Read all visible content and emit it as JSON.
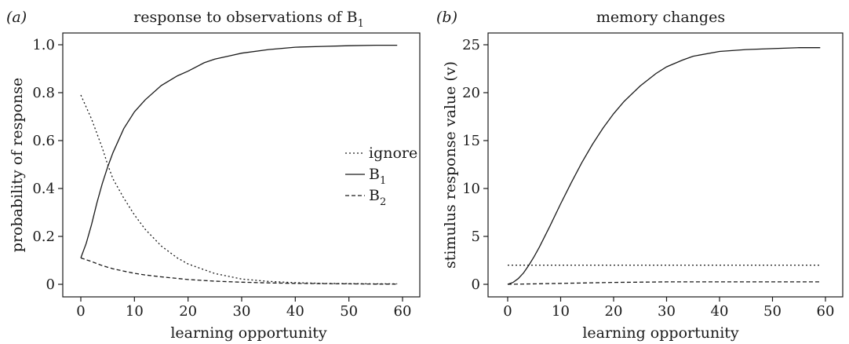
{
  "chart_data": [
    {
      "type": "line",
      "panel_label": "(a)",
      "title": "response to observations of B",
      "title_sub": "1",
      "xlabel": "learning opportunity",
      "ylabel": "probability of response",
      "xlim": [
        0,
        60
      ],
      "ylim": [
        0,
        1.0
      ],
      "xticks": [
        0,
        10,
        20,
        30,
        40,
        50,
        60
      ],
      "yticks": [
        0,
        0.2,
        0.4,
        0.6,
        0.8,
        1.0
      ],
      "ytick_labels": [
        "0",
        "0.2",
        "0.4",
        "0.6",
        "0.8",
        "1.0"
      ],
      "legend_position": "center-right",
      "series": [
        {
          "name": "ignore",
          "dash": "dotted",
          "x": [
            0,
            2,
            4,
            5,
            6,
            8,
            10,
            12,
            15,
            18,
            20,
            25,
            30,
            35,
            40,
            45,
            50,
            55,
            59
          ],
          "y": [
            0.79,
            0.69,
            0.57,
            0.5,
            0.44,
            0.36,
            0.29,
            0.23,
            0.16,
            0.11,
            0.085,
            0.045,
            0.022,
            0.012,
            0.007,
            0.004,
            0.003,
            0.002,
            0.002
          ]
        },
        {
          "name": "B",
          "name_sub": "1",
          "dash": "solid",
          "x": [
            0,
            1,
            2,
            3,
            4,
            5,
            6,
            8,
            10,
            12,
            15,
            18,
            20,
            23,
            25,
            28,
            30,
            35,
            40,
            45,
            50,
            55,
            59
          ],
          "y": [
            0.11,
            0.17,
            0.25,
            0.34,
            0.42,
            0.49,
            0.55,
            0.65,
            0.72,
            0.77,
            0.83,
            0.87,
            0.89,
            0.925,
            0.94,
            0.955,
            0.965,
            0.98,
            0.99,
            0.993,
            0.996,
            0.998,
            0.998
          ]
        },
        {
          "name": "B",
          "name_sub": "2",
          "dash": "dashed",
          "x": [
            0,
            2,
            4,
            6,
            8,
            10,
            12,
            15,
            20,
            25,
            30,
            35,
            40,
            45,
            50,
            55,
            59
          ],
          "y": [
            0.11,
            0.095,
            0.078,
            0.065,
            0.055,
            0.046,
            0.039,
            0.031,
            0.02,
            0.013,
            0.009,
            0.006,
            0.004,
            0.003,
            0.002,
            0.001,
            0.001
          ]
        }
      ]
    },
    {
      "type": "line",
      "panel_label": "(b)",
      "title": "memory changes",
      "xlabel": "learning opportunity",
      "ylabel": "stimulus response value (v)",
      "xlim": [
        0,
        60
      ],
      "ylim": [
        0,
        25
      ],
      "xticks": [
        0,
        10,
        20,
        30,
        40,
        50,
        60
      ],
      "yticks": [
        0,
        5,
        10,
        15,
        20,
        25
      ],
      "ytick_labels": [
        "0",
        "5",
        "10",
        "15",
        "20",
        "25"
      ],
      "series": [
        {
          "dash": "solid",
          "x": [
            0,
            1,
            2,
            3,
            4,
            5,
            6,
            8,
            10,
            12,
            14,
            16,
            18,
            20,
            22,
            25,
            28,
            30,
            33,
            35,
            40,
            45,
            50,
            55,
            59
          ],
          "y": [
            0,
            0.2,
            0.6,
            1.2,
            2.0,
            2.9,
            3.9,
            6.1,
            8.4,
            10.6,
            12.7,
            14.6,
            16.3,
            17.8,
            19.1,
            20.7,
            22.0,
            22.7,
            23.4,
            23.8,
            24.3,
            24.5,
            24.6,
            24.7,
            24.7
          ]
        },
        {
          "dash": "dotted",
          "x": [
            0,
            59
          ],
          "y": [
            2.0,
            2.0
          ]
        },
        {
          "dash": "dashed",
          "x": [
            0,
            10,
            20,
            30,
            40,
            50,
            59
          ],
          "y": [
            0,
            0.1,
            0.2,
            0.25,
            0.25,
            0.25,
            0.25
          ]
        }
      ]
    }
  ]
}
